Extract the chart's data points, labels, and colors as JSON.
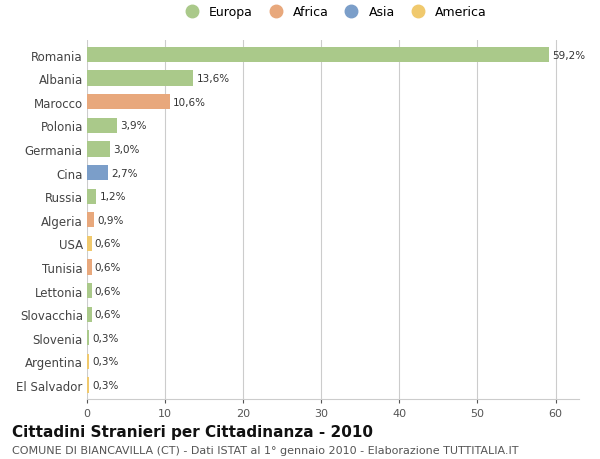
{
  "countries": [
    "Romania",
    "Albania",
    "Marocco",
    "Polonia",
    "Germania",
    "Cina",
    "Russia",
    "Algeria",
    "USA",
    "Tunisia",
    "Lettonia",
    "Slovacchia",
    "Slovenia",
    "Argentina",
    "El Salvador"
  ],
  "values": [
    59.2,
    13.6,
    10.6,
    3.9,
    3.0,
    2.7,
    1.2,
    0.9,
    0.6,
    0.6,
    0.6,
    0.6,
    0.3,
    0.3,
    0.3
  ],
  "labels": [
    "59,2%",
    "13,6%",
    "10,6%",
    "3,9%",
    "3,0%",
    "2,7%",
    "1,2%",
    "0,9%",
    "0,6%",
    "0,6%",
    "0,6%",
    "0,6%",
    "0,3%",
    "0,3%",
    "0,3%"
  ],
  "continents": [
    "Europa",
    "Europa",
    "Africa",
    "Europa",
    "Europa",
    "Asia",
    "Europa",
    "Africa",
    "America",
    "Africa",
    "Europa",
    "Europa",
    "Europa",
    "America",
    "America"
  ],
  "colors": {
    "Europa": "#aac98a",
    "Africa": "#e8a87c",
    "Asia": "#7b9ec9",
    "America": "#f0c96d"
  },
  "legend_order": [
    "Europa",
    "Africa",
    "Asia",
    "America"
  ],
  "xlim": [
    0,
    63
  ],
  "xticks": [
    0,
    10,
    20,
    30,
    40,
    50,
    60
  ],
  "title": "Cittadini Stranieri per Cittadinanza - 2010",
  "subtitle": "COMUNE DI BIANCAVILLA (CT) - Dati ISTAT al 1° gennaio 2010 - Elaborazione TUTTITALIA.IT",
  "title_fontsize": 11,
  "subtitle_fontsize": 8,
  "background_color": "#ffffff",
  "grid_color": "#cccccc",
  "bar_height": 0.65
}
